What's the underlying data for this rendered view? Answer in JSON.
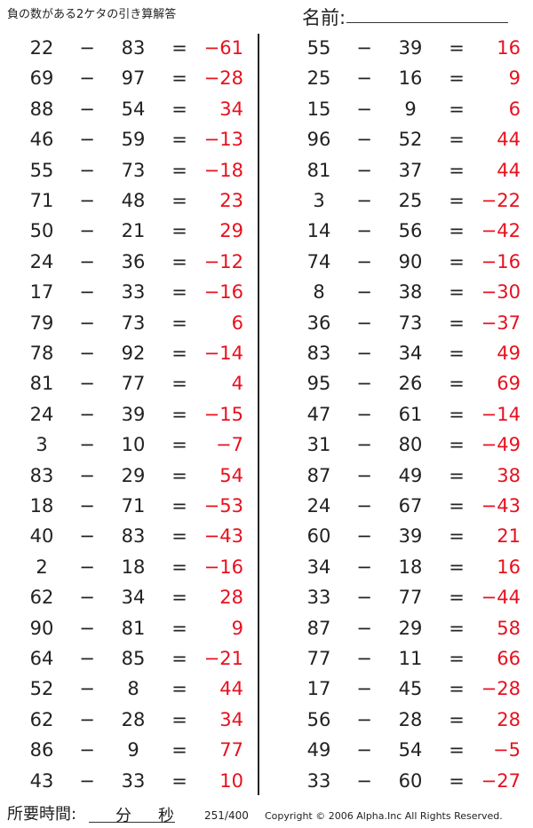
{
  "header": {
    "title": "負の数がある2ケタの引き算解答",
    "name_label": "名前:"
  },
  "symbols": {
    "minus": "−",
    "equals": "="
  },
  "answer_color": "#e8101e",
  "left": [
    [
      22,
      83,
      -61
    ],
    [
      69,
      97,
      -28
    ],
    [
      88,
      54,
      34
    ],
    [
      46,
      59,
      -13
    ],
    [
      55,
      73,
      -18
    ],
    [
      71,
      48,
      23
    ],
    [
      50,
      21,
      29
    ],
    [
      24,
      36,
      -12
    ],
    [
      17,
      33,
      -16
    ],
    [
      79,
      73,
      6
    ],
    [
      78,
      92,
      -14
    ],
    [
      81,
      77,
      4
    ],
    [
      24,
      39,
      -15
    ],
    [
      3,
      10,
      -7
    ],
    [
      83,
      29,
      54
    ],
    [
      18,
      71,
      -53
    ],
    [
      40,
      83,
      -43
    ],
    [
      2,
      18,
      -16
    ],
    [
      62,
      34,
      28
    ],
    [
      90,
      81,
      9
    ],
    [
      64,
      85,
      -21
    ],
    [
      52,
      8,
      44
    ],
    [
      62,
      28,
      34
    ],
    [
      86,
      9,
      77
    ],
    [
      43,
      33,
      10
    ]
  ],
  "right": [
    [
      55,
      39,
      16
    ],
    [
      25,
      16,
      9
    ],
    [
      15,
      9,
      6
    ],
    [
      96,
      52,
      44
    ],
    [
      81,
      37,
      44
    ],
    [
      3,
      25,
      -22
    ],
    [
      14,
      56,
      -42
    ],
    [
      74,
      90,
      -16
    ],
    [
      8,
      38,
      -30
    ],
    [
      36,
      73,
      -37
    ],
    [
      83,
      34,
      49
    ],
    [
      95,
      26,
      69
    ],
    [
      47,
      61,
      -14
    ],
    [
      31,
      80,
      -49
    ],
    [
      87,
      49,
      38
    ],
    [
      24,
      67,
      -43
    ],
    [
      60,
      39,
      21
    ],
    [
      34,
      18,
      16
    ],
    [
      33,
      77,
      -44
    ],
    [
      87,
      29,
      58
    ],
    [
      77,
      11,
      66
    ],
    [
      17,
      45,
      -28
    ],
    [
      56,
      28,
      28
    ],
    [
      49,
      54,
      -5
    ],
    [
      33,
      60,
      -27
    ]
  ],
  "footer": {
    "time_label": "所要時間:",
    "minutes": "分",
    "seconds": "秒",
    "page": "251/400",
    "copyright": "Copyright © 2006 Alpha.Inc All Rights Reserved."
  }
}
